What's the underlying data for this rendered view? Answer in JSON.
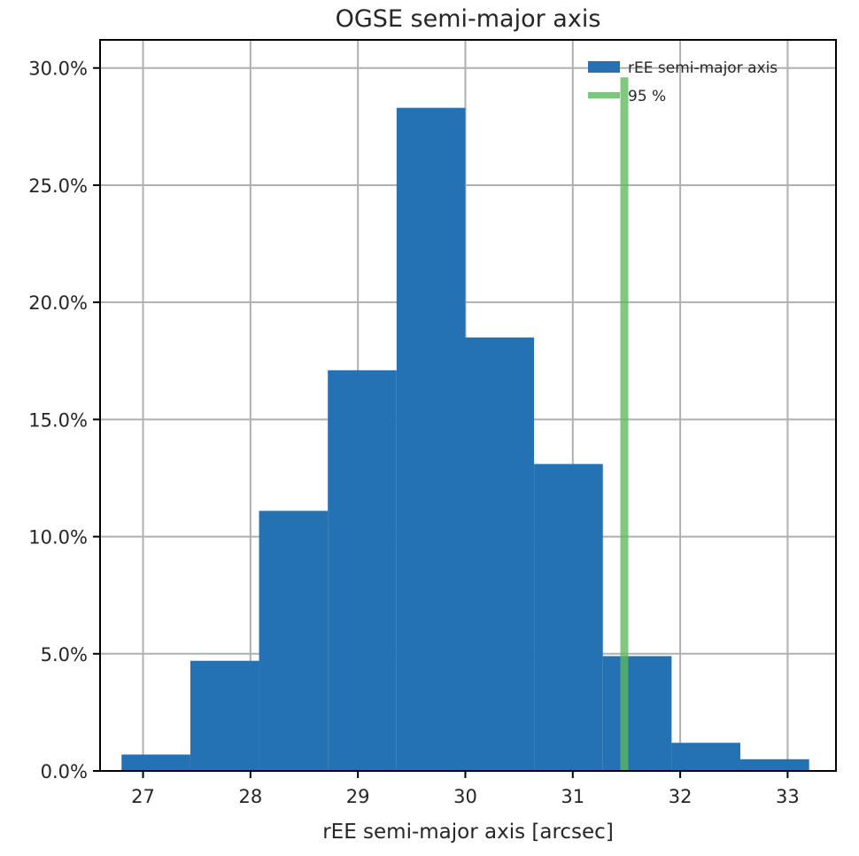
{
  "chart_data": {
    "type": "bar",
    "title": "OGSE semi-major axis",
    "xlabel": "rEE semi-major axis [arcsec]",
    "ylabel": "",
    "xlim": [
      26.6,
      33.45
    ],
    "ylim": [
      0,
      31.2
    ],
    "x_ticks": [
      27,
      28,
      29,
      30,
      31,
      32,
      33
    ],
    "x_tick_labels": [
      "27",
      "28",
      "29",
      "30",
      "31",
      "32",
      "33"
    ],
    "y_ticks": [
      0,
      5,
      10,
      15,
      20,
      25,
      30
    ],
    "y_tick_labels": [
      "0.0%",
      "5.0%",
      "10.0%",
      "15.0%",
      "20.0%",
      "25.0%",
      "30.0%"
    ],
    "grid": true,
    "legend_position": "top-right",
    "bins": [
      {
        "x0": 26.8,
        "x1": 27.44,
        "value": 0.7
      },
      {
        "x0": 27.44,
        "x1": 28.08,
        "value": 4.7
      },
      {
        "x0": 28.08,
        "x1": 28.72,
        "value": 11.1
      },
      {
        "x0": 28.72,
        "x1": 29.36,
        "value": 17.1
      },
      {
        "x0": 29.36,
        "x1": 30.0,
        "value": 28.3
      },
      {
        "x0": 30.0,
        "x1": 30.64,
        "value": 18.5
      },
      {
        "x0": 30.64,
        "x1": 31.28,
        "value": 13.1
      },
      {
        "x0": 31.28,
        "x1": 31.92,
        "value": 4.9
      },
      {
        "x0": 31.92,
        "x1": 32.56,
        "value": 1.2
      },
      {
        "x0": 32.56,
        "x1": 33.2,
        "value": 0.5
      }
    ],
    "series": [
      {
        "name": "rEE semi-major axis",
        "type": "histogram",
        "color": "#2471b3"
      },
      {
        "name": "95 %",
        "type": "vline",
        "x": 31.48,
        "ymax": 29.6,
        "color": "#5cb85c"
      }
    ]
  }
}
